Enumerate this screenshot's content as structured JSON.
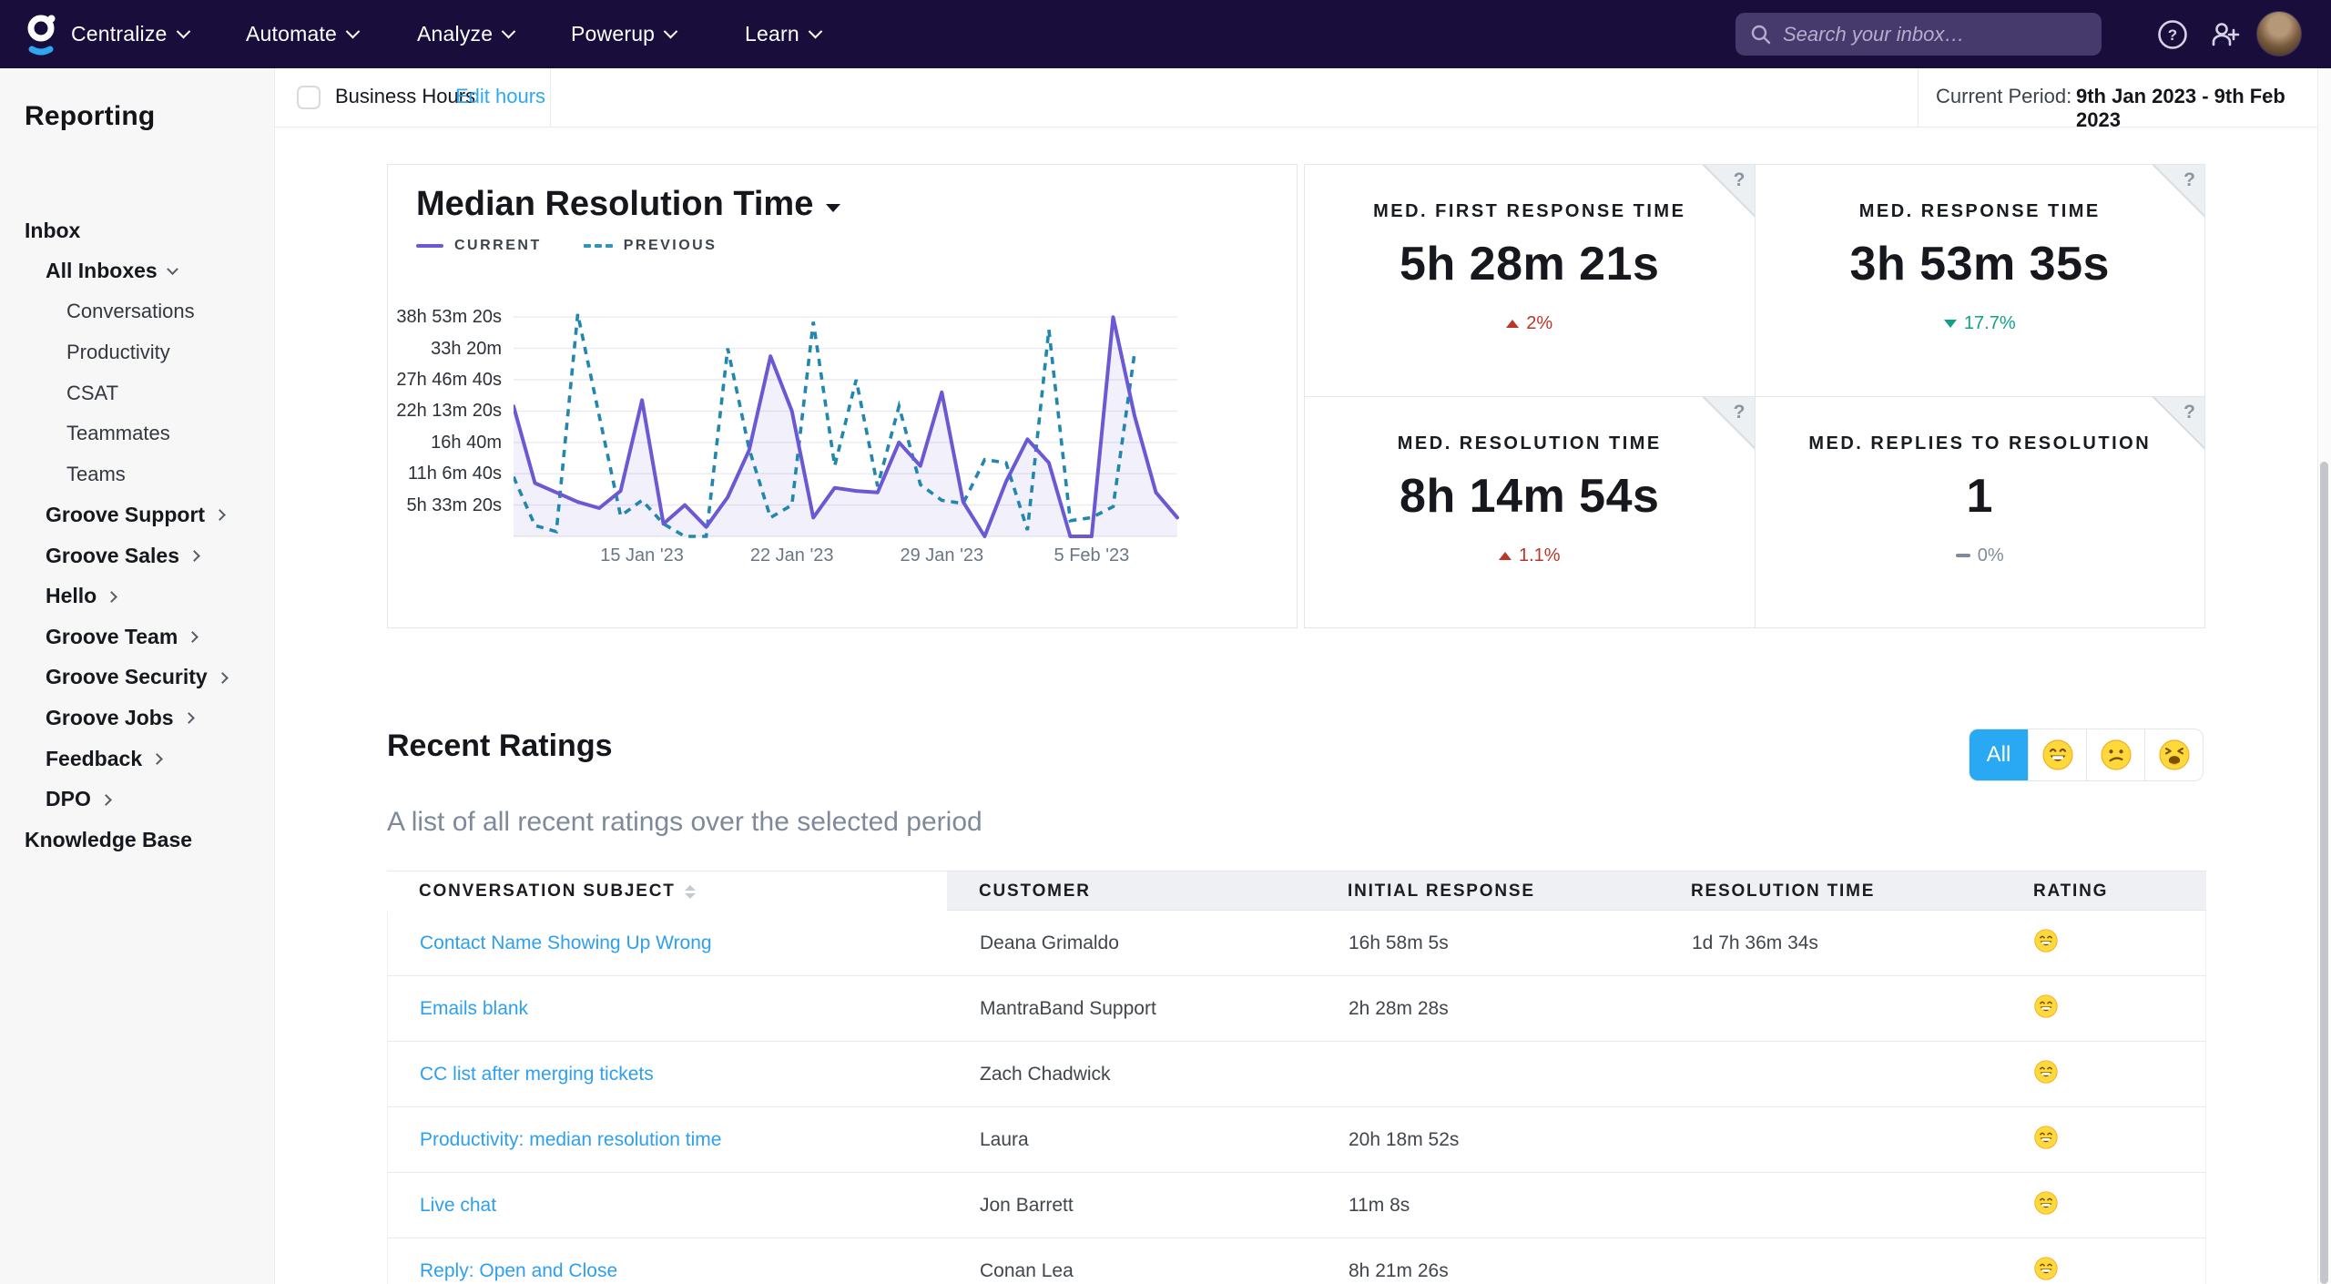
{
  "colors": {
    "nav_bg": "#190d3c",
    "accent_blue": "#29a9f4",
    "link_blue": "#2d9ff0",
    "current_purple": "#6b59d3",
    "previous_teal": "#2187ae",
    "delta_up_red": "#bb3528",
    "delta_down_green": "#12a186",
    "delta_flat_gray": "#7f8b96",
    "sidebar_bg": "#f7f7f8",
    "table_header_bg": "#eef0f4"
  },
  "nav": {
    "logo": "groove-logo",
    "menus": [
      "Centralize",
      "Automate",
      "Analyze",
      "Powerup",
      "Learn"
    ],
    "search_placeholder": "Search your inbox…",
    "icons": [
      "search-icon",
      "help-icon",
      "invite-user-icon",
      "user-avatar"
    ]
  },
  "topbar": {
    "business_hours_label": "Business Hours",
    "business_hours_checked": false,
    "edit_hours_label": "Edit hours",
    "current_period_label": "Current Period:",
    "current_period_value": "9th Jan 2023 - 9th Feb 2023"
  },
  "sidebar": {
    "title": "Reporting",
    "items": [
      {
        "label": "Inbox",
        "level": 0,
        "chevron": "none"
      },
      {
        "label": "All Inboxes",
        "level": 1,
        "chevron": "down"
      },
      {
        "label": "Conversations",
        "level": 2,
        "chevron": "none"
      },
      {
        "label": "Productivity",
        "level": 2,
        "chevron": "none"
      },
      {
        "label": "CSAT",
        "level": 2,
        "chevron": "none"
      },
      {
        "label": "Teammates",
        "level": 2,
        "chevron": "none"
      },
      {
        "label": "Teams",
        "level": 2,
        "chevron": "none"
      },
      {
        "label": "Groove Support",
        "level": 1,
        "chevron": "right"
      },
      {
        "label": "Groove Sales",
        "level": 1,
        "chevron": "right"
      },
      {
        "label": "Hello",
        "level": 1,
        "chevron": "right"
      },
      {
        "label": "Groove Team",
        "level": 1,
        "chevron": "right"
      },
      {
        "label": "Groove Security",
        "level": 1,
        "chevron": "right"
      },
      {
        "label": "Groove Jobs",
        "level": 1,
        "chevron": "right"
      },
      {
        "label": "Feedback",
        "level": 1,
        "chevron": "right"
      },
      {
        "label": "DPO",
        "level": 1,
        "chevron": "right"
      },
      {
        "label": "Knowledge Base",
        "level": 0,
        "chevron": "none"
      }
    ]
  },
  "chart_card": {
    "title": "Median Resolution Time",
    "legend_current": "CURRENT",
    "legend_previous": "PREVIOUS"
  },
  "chart_data": {
    "type": "line",
    "title": "Median Resolution Time",
    "points": 32,
    "x_unit": "day (9 Jan 2023 – 9 Feb 2023)",
    "ylim_seconds": [
      0,
      150000
    ],
    "grid": true,
    "legend_position": "top-left",
    "y_ticks": [
      {
        "value": 20000,
        "label": "5h 33m 20s"
      },
      {
        "value": 40000,
        "label": "11h 6m 40s"
      },
      {
        "value": 60000,
        "label": "16h 40m"
      },
      {
        "value": 80000,
        "label": "22h 13m 20s"
      },
      {
        "value": 100000,
        "label": "27h 46m 40s"
      },
      {
        "value": 120000,
        "label": "33h 20m"
      },
      {
        "value": 140000,
        "label": "38h 53m 20s"
      }
    ],
    "x_ticks": [
      {
        "index": 6,
        "label": "15 Jan '23"
      },
      {
        "index": 13,
        "label": "22 Jan '23"
      },
      {
        "index": 20,
        "label": "29 Jan '23"
      },
      {
        "index": 27,
        "label": "5 Feb '23"
      }
    ],
    "series": [
      {
        "name": "CURRENT",
        "style": "solid",
        "color": "#6b59d3",
        "area": true,
        "values_seconds": [
          83000,
          34000,
          28000,
          22000,
          18000,
          29000,
          87000,
          8000,
          20000,
          6000,
          25000,
          55000,
          115000,
          80000,
          12000,
          31000,
          29000,
          28000,
          60000,
          45000,
          92000,
          22000,
          0,
          35000,
          62000,
          47000,
          0,
          0,
          140000,
          77000,
          28000,
          12000
        ]
      },
      {
        "name": "PREVIOUS",
        "style": "dashed",
        "color": "#2187ae",
        "area": false,
        "values_seconds": [
          38000,
          7000,
          3000,
          142000,
          77000,
          13000,
          23000,
          8000,
          0,
          0,
          120000,
          56000,
          12000,
          20000,
          137000,
          45000,
          100000,
          32000,
          83000,
          33000,
          23000,
          21000,
          49000,
          47000,
          4000,
          132000,
          10000,
          12000,
          19000,
          117000,
          null,
          null
        ]
      }
    ]
  },
  "stat_cards": [
    {
      "label": "MED. FIRST RESPONSE TIME",
      "value": "5h 28m 21s",
      "delta": "2%",
      "direction": "up",
      "help_icon": "?"
    },
    {
      "label": "MED. RESPONSE TIME",
      "value": "3h 53m 35s",
      "delta": "17.7%",
      "direction": "down",
      "help_icon": "?"
    },
    {
      "label": "MED. RESOLUTION TIME",
      "value": "8h 14m 54s",
      "delta": "1.1%",
      "direction": "up",
      "help_icon": "?"
    },
    {
      "label": "MED. REPLIES TO RESOLUTION",
      "value": "1",
      "delta": "0%",
      "direction": "flat",
      "help_icon": "?"
    }
  ],
  "ratings": {
    "heading": "Recent Ratings",
    "subtitle": "A list of all recent ratings over the selected period",
    "filters": [
      {
        "label": "All",
        "active": true,
        "icon": "none"
      },
      {
        "label": "",
        "active": false,
        "icon": "grin-emoji"
      },
      {
        "label": "",
        "active": false,
        "icon": "confused-emoji"
      },
      {
        "label": "",
        "active": false,
        "icon": "weary-emoji"
      }
    ]
  },
  "table": {
    "columns": [
      {
        "label": "CONVERSATION SUBJECT",
        "sortable": true
      },
      {
        "label": "CUSTOMER",
        "sortable": false
      },
      {
        "label": "INITIAL RESPONSE",
        "sortable": false
      },
      {
        "label": "RESOLUTION TIME",
        "sortable": false
      },
      {
        "label": "RATING",
        "sortable": false
      }
    ],
    "rows": [
      {
        "subject": "Contact Name Showing Up Wrong",
        "customer": "Deana Grimaldo",
        "initial_response": "16h 58m 5s",
        "resolution_time": "1d 7h 36m 34s",
        "rating": "grin-emoji"
      },
      {
        "subject": "Emails blank",
        "customer": "MantraBand Support",
        "initial_response": "2h 28m 28s",
        "resolution_time": "",
        "rating": "grin-emoji"
      },
      {
        "subject": "CC list after merging tickets",
        "customer": "Zach Chadwick",
        "initial_response": "",
        "resolution_time": "",
        "rating": "grin-emoji"
      },
      {
        "subject": "Productivity: median resolution time",
        "customer": "Laura",
        "initial_response": "20h 18m 52s",
        "resolution_time": "",
        "rating": "grin-emoji"
      },
      {
        "subject": "Live chat",
        "customer": "Jon Barrett",
        "initial_response": "11m 8s",
        "resolution_time": "",
        "rating": "grin-emoji"
      },
      {
        "subject": "Reply: Open and Close",
        "customer": "Conan Lea",
        "initial_response": "8h 21m 26s",
        "resolution_time": "",
        "rating": "grin-emoji"
      }
    ]
  }
}
